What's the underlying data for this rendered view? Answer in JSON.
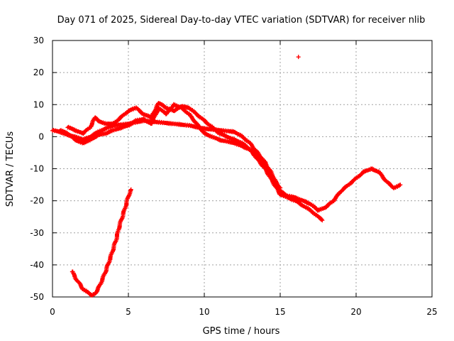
{
  "chart_data": {
    "type": "scatter",
    "title": "Day 071 of 2025, Sidereal Day-to-day VTEC variation (SDTVAR) for receiver nlib",
    "xlabel": "GPS time / hours",
    "ylabel": "SDTVAR / TECUs",
    "xlim": [
      0,
      25
    ],
    "ylim": [
      -50,
      30
    ],
    "xticks": [
      0,
      5,
      10,
      15,
      20,
      25
    ],
    "yticks": [
      -50,
      -40,
      -30,
      -20,
      -10,
      0,
      10,
      20,
      30
    ],
    "grid": true,
    "marker": "+",
    "color": "#ff0000",
    "series": [
      {
        "name": "main-track-a",
        "points": [
          [
            0,
            2
          ],
          [
            0.5,
            1.5
          ],
          [
            1,
            0.5
          ],
          [
            1.5,
            0
          ],
          [
            2,
            -1
          ],
          [
            2.5,
            0
          ],
          [
            3,
            1.5
          ],
          [
            3.5,
            2.5
          ],
          [
            4,
            3.5
          ],
          [
            5,
            4
          ],
          [
            6,
            5
          ],
          [
            7,
            4.5
          ],
          [
            8,
            4
          ],
          [
            9,
            3.5
          ],
          [
            10,
            2.5
          ],
          [
            11,
            2
          ],
          [
            12,
            1.5
          ],
          [
            12.5,
            0
          ],
          [
            13,
            -2
          ],
          [
            13.5,
            -5
          ],
          [
            14,
            -8
          ],
          [
            14.5,
            -12
          ],
          [
            15,
            -17
          ],
          [
            15.5,
            -18.5
          ],
          [
            16,
            -19
          ],
          [
            16.5,
            -20
          ],
          [
            17,
            -21
          ],
          [
            17.5,
            -23
          ],
          [
            18,
            -22
          ],
          [
            18.5,
            -20
          ],
          [
            19,
            -17
          ],
          [
            19.5,
            -15
          ],
          [
            20,
            -13
          ],
          [
            20.5,
            -11
          ],
          [
            21,
            -10
          ],
          [
            21.5,
            -11
          ],
          [
            22,
            -14
          ],
          [
            22.5,
            -16
          ],
          [
            22.9,
            -15
          ]
        ]
      },
      {
        "name": "main-track-b",
        "points": [
          [
            0.5,
            2
          ],
          [
            1,
            1
          ],
          [
            1.5,
            -1
          ],
          [
            2,
            -2
          ],
          [
            2.5,
            -1
          ],
          [
            3,
            0.5
          ],
          [
            3.5,
            1
          ],
          [
            4,
            2
          ],
          [
            5,
            3.5
          ],
          [
            5.5,
            5
          ],
          [
            6,
            5.5
          ],
          [
            6.5,
            4
          ],
          [
            7,
            9
          ],
          [
            7.5,
            7
          ],
          [
            8,
            10
          ],
          [
            8.5,
            9
          ],
          [
            9,
            7
          ],
          [
            9.5,
            4
          ],
          [
            10,
            1
          ],
          [
            11,
            -1
          ],
          [
            12,
            -2
          ],
          [
            12.5,
            -3
          ],
          [
            13,
            -4
          ],
          [
            13.5,
            -7
          ],
          [
            14,
            -10
          ],
          [
            14.5,
            -14
          ],
          [
            15,
            -18
          ],
          [
            16,
            -20
          ],
          [
            17,
            -23
          ],
          [
            17.5,
            -25
          ],
          [
            17.8,
            -26
          ]
        ]
      },
      {
        "name": "main-track-c",
        "points": [
          [
            1,
            3
          ],
          [
            1.5,
            2
          ],
          [
            2,
            1
          ],
          [
            2.5,
            3
          ],
          [
            2.8,
            6
          ],
          [
            3,
            5
          ],
          [
            3.5,
            4
          ],
          [
            4,
            4
          ],
          [
            5,
            8
          ],
          [
            5.5,
            9
          ],
          [
            6,
            7
          ],
          [
            6.5,
            6
          ],
          [
            7,
            10.5
          ],
          [
            7.5,
            9
          ],
          [
            8,
            8
          ],
          [
            8.5,
            9.5
          ],
          [
            9,
            9
          ],
          [
            9.5,
            7
          ],
          [
            10,
            5
          ],
          [
            10.5,
            3
          ],
          [
            11,
            1
          ],
          [
            11.5,
            0
          ],
          [
            12,
            -1
          ],
          [
            12.5,
            -2
          ],
          [
            13,
            -4
          ],
          [
            13.5,
            -6
          ],
          [
            14,
            -9
          ],
          [
            14.5,
            -13
          ],
          [
            15,
            -16
          ]
        ]
      },
      {
        "name": "low-arc",
        "points": [
          [
            1.3,
            -42
          ],
          [
            1.5,
            -44
          ],
          [
            1.8,
            -46
          ],
          [
            2,
            -47.5
          ],
          [
            2.3,
            -48.5
          ],
          [
            2.6,
            -49.5
          ],
          [
            2.8,
            -49
          ],
          [
            3,
            -47.5
          ],
          [
            3.2,
            -45.5
          ],
          [
            3.5,
            -42
          ],
          [
            3.8,
            -38
          ],
          [
            4,
            -35
          ],
          [
            4.2,
            -32
          ],
          [
            4.4,
            -28
          ],
          [
            4.6,
            -25
          ],
          [
            4.8,
            -22
          ],
          [
            5,
            -18.5
          ],
          [
            5.2,
            -16.5
          ]
        ]
      },
      {
        "name": "outlier",
        "points": [
          [
            16.2,
            25
          ]
        ]
      }
    ]
  }
}
